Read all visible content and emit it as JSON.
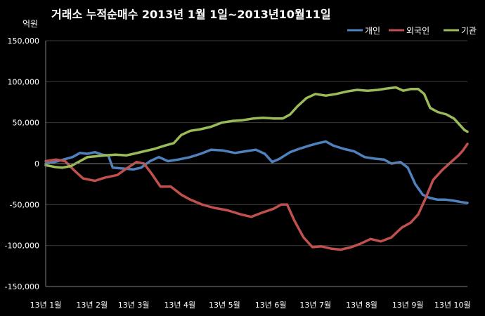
{
  "chart_data": {
    "type": "line",
    "title": "거래소 누적순매수 2013년 1월 1일~2013년10월11일",
    "unit_label": "억원",
    "ylim": [
      -150000,
      150000
    ],
    "y_ticks": [
      -150000,
      -100000,
      -50000,
      0,
      50000,
      100000,
      150000
    ],
    "y_tick_labels": [
      "-150,000",
      "-100,000",
      "-50,000",
      "0",
      "50,000",
      "100,000",
      "150,000"
    ],
    "x_range": [
      "2013-01-01",
      "2013-10-11"
    ],
    "x_ticks": [
      {
        "label": "13년 1월",
        "date": "2013-01-01"
      },
      {
        "label": "13년 2월",
        "date": "2013-02-01"
      },
      {
        "label": "13년 3월",
        "date": "2013-03-01"
      },
      {
        "label": "13년 4월",
        "date": "2013-04-01"
      },
      {
        "label": "13년 5월",
        "date": "2013-05-01"
      },
      {
        "label": "13년 6월",
        "date": "2013-06-01"
      },
      {
        "label": "13년 7월",
        "date": "2013-07-01"
      },
      {
        "label": "13년 8월",
        "date": "2013-08-01"
      },
      {
        "label": "13년 9월",
        "date": "2013-09-01"
      },
      {
        "label": "13년 10월",
        "date": "2013-10-01"
      }
    ],
    "grid": true,
    "legend_position": "top-right",
    "series": [
      {
        "name": "개인",
        "color": "#4f81bd",
        "points": [
          [
            "2013-01-01",
            0
          ],
          [
            "2013-01-07",
            2000
          ],
          [
            "2013-01-13",
            5000
          ],
          [
            "2013-01-19",
            8000
          ],
          [
            "2013-01-24",
            13000
          ],
          [
            "2013-01-29",
            12000
          ],
          [
            "2013-02-03",
            14000
          ],
          [
            "2013-02-08",
            11000
          ],
          [
            "2013-02-12",
            10000
          ],
          [
            "2013-02-15",
            -5000
          ],
          [
            "2013-02-22",
            -6000
          ],
          [
            "2013-03-01",
            -7000
          ],
          [
            "2013-03-06",
            -5000
          ],
          [
            "2013-03-12",
            3000
          ],
          [
            "2013-03-18",
            8000
          ],
          [
            "2013-03-24",
            3000
          ],
          [
            "2013-03-31",
            5000
          ],
          [
            "2013-04-08",
            8000
          ],
          [
            "2013-04-15",
            12000
          ],
          [
            "2013-04-22",
            17000
          ],
          [
            "2013-04-30",
            16000
          ],
          [
            "2013-05-08",
            13000
          ],
          [
            "2013-05-15",
            15000
          ],
          [
            "2013-05-22",
            17000
          ],
          [
            "2013-05-28",
            12000
          ],
          [
            "2013-06-02",
            2000
          ],
          [
            "2013-06-07",
            6000
          ],
          [
            "2013-06-14",
            14000
          ],
          [
            "2013-06-20",
            18000
          ],
          [
            "2013-06-27",
            22000
          ],
          [
            "2013-07-03",
            25000
          ],
          [
            "2013-07-08",
            27000
          ],
          [
            "2013-07-13",
            22000
          ],
          [
            "2013-07-20",
            18000
          ],
          [
            "2013-07-27",
            15000
          ],
          [
            "2013-08-03",
            8000
          ],
          [
            "2013-08-10",
            6000
          ],
          [
            "2013-08-16",
            5000
          ],
          [
            "2013-08-21",
            0
          ],
          [
            "2013-08-27",
            2000
          ],
          [
            "2013-09-01",
            -5000
          ],
          [
            "2013-09-06",
            -25000
          ],
          [
            "2013-09-11",
            -38000
          ],
          [
            "2013-09-16",
            -42000
          ],
          [
            "2013-09-21",
            -44000
          ],
          [
            "2013-09-26",
            -44000
          ],
          [
            "2013-10-01",
            -45000
          ],
          [
            "2013-10-07",
            -47000
          ],
          [
            "2013-10-11",
            -48000
          ]
        ]
      },
      {
        "name": "외국인",
        "color": "#c0504d",
        "points": [
          [
            "2013-01-01",
            3000
          ],
          [
            "2013-01-08",
            5000
          ],
          [
            "2013-01-14",
            3000
          ],
          [
            "2013-01-20",
            -8000
          ],
          [
            "2013-01-26",
            -18000
          ],
          [
            "2013-02-03",
            -21000
          ],
          [
            "2013-02-10",
            -17000
          ],
          [
            "2013-02-18",
            -14000
          ],
          [
            "2013-02-25",
            -5000
          ],
          [
            "2013-03-03",
            2000
          ],
          [
            "2013-03-08",
            0
          ],
          [
            "2013-03-13",
            -12000
          ],
          [
            "2013-03-19",
            -28000
          ],
          [
            "2013-03-26",
            -28000
          ],
          [
            "2013-04-02",
            -38000
          ],
          [
            "2013-04-08",
            -44000
          ],
          [
            "2013-04-16",
            -50000
          ],
          [
            "2013-04-24",
            -54000
          ],
          [
            "2013-05-03",
            -57000
          ],
          [
            "2013-05-12",
            -62000
          ],
          [
            "2013-05-19",
            -65000
          ],
          [
            "2013-05-26",
            -60000
          ],
          [
            "2013-06-03",
            -55000
          ],
          [
            "2013-06-08",
            -50000
          ],
          [
            "2013-06-12",
            -50000
          ],
          [
            "2013-06-17",
            -70000
          ],
          [
            "2013-06-23",
            -90000
          ],
          [
            "2013-06-29",
            -102000
          ],
          [
            "2013-07-05",
            -101000
          ],
          [
            "2013-07-12",
            -104000
          ],
          [
            "2013-07-18",
            -105000
          ],
          [
            "2013-07-25",
            -102000
          ],
          [
            "2013-07-31",
            -98000
          ],
          [
            "2013-08-07",
            -92000
          ],
          [
            "2013-08-14",
            -95000
          ],
          [
            "2013-08-21",
            -90000
          ],
          [
            "2013-08-28",
            -78000
          ],
          [
            "2013-09-03",
            -72000
          ],
          [
            "2013-09-08",
            -62000
          ],
          [
            "2013-09-13",
            -42000
          ],
          [
            "2013-09-18",
            -20000
          ],
          [
            "2013-09-24",
            -8000
          ],
          [
            "2013-09-30",
            2000
          ],
          [
            "2013-10-05",
            10000
          ],
          [
            "2013-10-08",
            16000
          ],
          [
            "2013-10-11",
            24000
          ]
        ]
      },
      {
        "name": "기관",
        "color": "#9bbb59",
        "points": [
          [
            "2013-01-01",
            -2000
          ],
          [
            "2013-01-07",
            -4000
          ],
          [
            "2013-01-12",
            -5000
          ],
          [
            "2013-01-18",
            -3000
          ],
          [
            "2013-01-23",
            2000
          ],
          [
            "2013-01-29",
            8000
          ],
          [
            "2013-02-04",
            9000
          ],
          [
            "2013-02-10",
            10000
          ],
          [
            "2013-02-17",
            11000
          ],
          [
            "2013-02-24",
            10000
          ],
          [
            "2013-03-01",
            12000
          ],
          [
            "2013-03-08",
            15000
          ],
          [
            "2013-03-15",
            18000
          ],
          [
            "2013-03-22",
            22000
          ],
          [
            "2013-03-28",
            25000
          ],
          [
            "2013-04-02",
            35000
          ],
          [
            "2013-04-08",
            40000
          ],
          [
            "2013-04-15",
            42000
          ],
          [
            "2013-04-22",
            45000
          ],
          [
            "2013-04-29",
            50000
          ],
          [
            "2013-05-06",
            52000
          ],
          [
            "2013-05-13",
            53000
          ],
          [
            "2013-05-20",
            55000
          ],
          [
            "2013-05-27",
            56000
          ],
          [
            "2013-06-03",
            55000
          ],
          [
            "2013-06-09",
            55000
          ],
          [
            "2013-06-14",
            60000
          ],
          [
            "2013-06-19",
            70000
          ],
          [
            "2013-06-25",
            80000
          ],
          [
            "2013-07-01",
            85000
          ],
          [
            "2013-07-08",
            83000
          ],
          [
            "2013-07-15",
            85000
          ],
          [
            "2013-07-22",
            88000
          ],
          [
            "2013-07-29",
            90000
          ],
          [
            "2013-08-05",
            89000
          ],
          [
            "2013-08-12",
            90000
          ],
          [
            "2013-08-19",
            92000
          ],
          [
            "2013-08-24",
            93000
          ],
          [
            "2013-08-29",
            89000
          ],
          [
            "2013-09-03",
            91000
          ],
          [
            "2013-09-08",
            91000
          ],
          [
            "2013-09-12",
            85000
          ],
          [
            "2013-09-16",
            68000
          ],
          [
            "2013-09-21",
            63000
          ],
          [
            "2013-09-27",
            60000
          ],
          [
            "2013-10-02",
            55000
          ],
          [
            "2013-10-06",
            47000
          ],
          [
            "2013-10-09",
            41000
          ],
          [
            "2013-10-11",
            39000
          ]
        ]
      }
    ]
  }
}
